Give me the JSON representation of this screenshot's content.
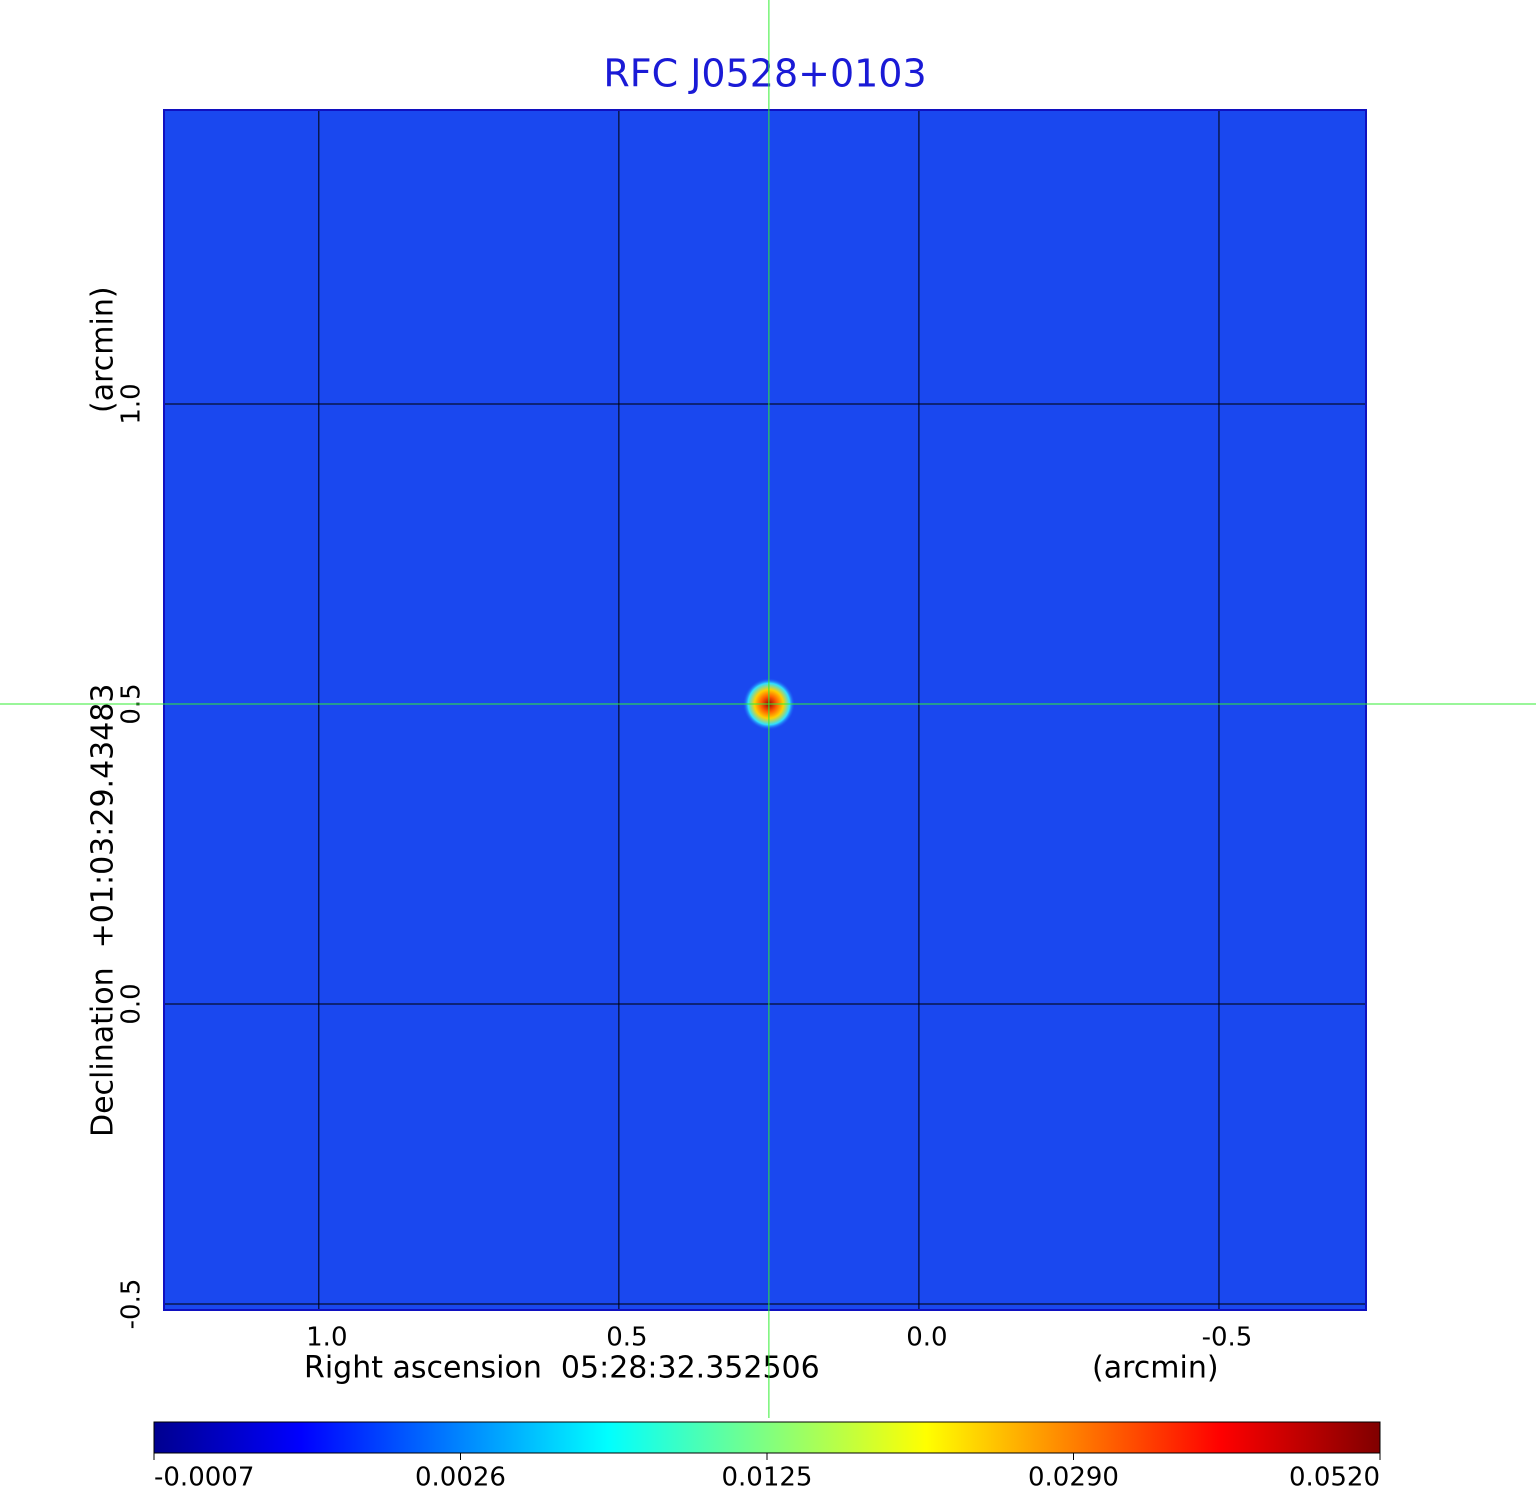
{
  "chart_data": {
    "type": "image",
    "title": "RFC J0528+0103",
    "xlabel": "Right ascension  05:28:32.352506",
    "xunit": "(arcmin)",
    "ylabel": "Declination  +01:03:29.43483",
    "yunit": "(arcmin)",
    "xlim": [
      1.258,
      -0.745
    ],
    "ylim": [
      -0.51,
      1.49
    ],
    "xticks": [
      {
        "value": 1,
        "label": "1.0"
      },
      0.5,
      {
        "value": 0,
        "label": "0.0"
      },
      -0.5
    ],
    "yticks": [
      -0.5,
      {
        "value": 0,
        "label": "0.0"
      },
      0.5,
      {
        "value": 1,
        "label": "1.0"
      }
    ],
    "grid": true,
    "peak": {
      "x": 0.25,
      "y": 0.5,
      "value": 0.052
    },
    "colorbar": {
      "colormap": "jet",
      "ticks": [
        -0.0007,
        0.0026,
        0.0125,
        {
          "value": 0.029,
          "label": "0.0290"
        },
        {
          "value": 0.052,
          "label": "0.0520"
        }
      ]
    }
  }
}
